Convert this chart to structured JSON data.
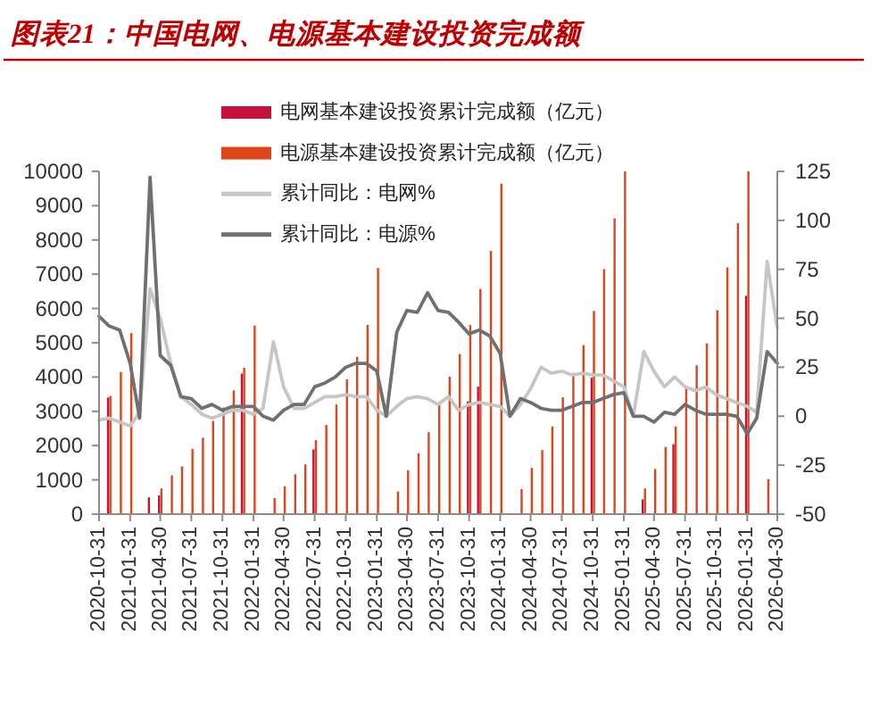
{
  "chart_data": {
    "type": "bar",
    "title": "图表21：中国电网、电源基本建设投资完成额",
    "x": [
      "2020-10-31",
      "2020-11-30",
      "2020-12-31",
      "2021-01-31",
      "2021-02-28",
      "2021-03-31",
      "2021-04-30",
      "2021-05-31",
      "2021-06-30",
      "2021-07-31",
      "2021-08-31",
      "2021-09-30",
      "2021-10-31",
      "2021-11-30",
      "2021-12-31",
      "2022-01-31",
      "2022-02-28",
      "2022-03-31",
      "2022-04-30",
      "2022-05-31",
      "2022-06-30",
      "2022-07-31",
      "2022-08-31",
      "2022-09-30",
      "2022-10-31",
      "2022-11-30",
      "2022-12-31",
      "2023-01-31",
      "2023-02-28",
      "2023-03-31",
      "2023-04-30",
      "2023-05-31",
      "2023-06-30",
      "2023-07-31",
      "2023-08-31",
      "2023-09-30",
      "2023-10-31",
      "2023-11-30",
      "2023-12-31",
      "2024-01-31",
      "2024-02-29",
      "2024-03-31",
      "2024-04-30",
      "2024-05-31",
      "2024-06-30",
      "2024-07-31",
      "2024-08-31",
      "2024-09-30",
      "2024-10-31",
      "2024-11-30",
      "2024-12-31",
      "2025-01-31",
      "2025-02-28",
      "2025-03-31",
      "2025-04-30",
      "2025-05-31",
      "2025-06-30",
      "2025-07-31",
      "2025-08-31",
      "2025-09-30",
      "2025-10-31",
      "2025-11-30",
      "2025-12-31",
      "2026-01-31",
      "2026-02-28",
      "2026-03-31",
      "2026-04-30"
    ],
    "series": [
      {
        "name": "电网基本建设投资累计完成额（亿元）",
        "color": "#c8103c",
        "values": [
          null,
          3400,
          null,
          null,
          null,
          490,
          550,
          null,
          null,
          null,
          null,
          null,
          null,
          null,
          4100,
          null,
          null,
          null,
          null,
          null,
          null,
          1890,
          null,
          null,
          null,
          null,
          null,
          null,
          null,
          null,
          null,
          null,
          null,
          null,
          null,
          null,
          3290,
          3720,
          null,
          null,
          null,
          null,
          null,
          null,
          null,
          null,
          null,
          null,
          3980,
          null,
          null,
          null,
          null,
          430,
          null,
          null,
          2040,
          null,
          null,
          null,
          null,
          null,
          null,
          6370,
          null,
          null,
          null
        ]
      },
      {
        "name": "电源基本建设投资累计完成额（亿元）",
        "color": "#e2441a",
        "values": [
          null,
          3450,
          4150,
          5280,
          null,
          null,
          750,
          1130,
          1390,
          1900,
          2230,
          2720,
          3110,
          3610,
          4270,
          5500,
          null,
          470,
          810,
          1160,
          1450,
          2160,
          2600,
          3200,
          3930,
          4590,
          5520,
          7180,
          null,
          660,
          1280,
          1780,
          2390,
          3250,
          4010,
          4670,
          5520,
          6570,
          7680,
          9640,
          null,
          730,
          1350,
          1870,
          2560,
          3410,
          4120,
          4930,
          5930,
          7150,
          8630,
          10000,
          null,
          750,
          1320,
          1960,
          2560,
          3690,
          4340,
          4980,
          5950,
          7200,
          8490,
          10000,
          null,
          1020,
          null
        ]
      },
      {
        "name": "累计同比：电网%",
        "type": "line",
        "axis": "y2",
        "color": "#c6c6c6",
        "values": [
          -2,
          -1,
          -3,
          -5,
          2,
          65,
          50,
          27,
          10,
          6,
          1,
          -1,
          1,
          3,
          3,
          1,
          4,
          38,
          15,
          4,
          4,
          7,
          10,
          10,
          11,
          10,
          10,
          3,
          0,
          5,
          9,
          10,
          9,
          6,
          10,
          3,
          6,
          7,
          6,
          5,
          0,
          6,
          14,
          25,
          22,
          23,
          21,
          22,
          21,
          21,
          18,
          15,
          0,
          33,
          23,
          15,
          20,
          15,
          13,
          15,
          11,
          9,
          7,
          5,
          2,
          79,
          45
        ]
      },
      {
        "name": "累计同比：电源%",
        "type": "line",
        "axis": "y2",
        "color": "#707070",
        "values": [
          51,
          46,
          44,
          27,
          -1,
          122,
          31,
          26,
          10,
          9,
          4,
          6,
          3,
          5,
          5,
          5,
          0,
          -2,
          3,
          6,
          6,
          15,
          17,
          20,
          25,
          27,
          27,
          23,
          0,
          43,
          54,
          53,
          63,
          54,
          53,
          48,
          42,
          44,
          41,
          32,
          0,
          9,
          7,
          4,
          3,
          3,
          5,
          7,
          7,
          9,
          11,
          12,
          0,
          0,
          -3,
          2,
          1,
          6,
          3,
          1,
          1,
          1,
          0,
          -9,
          -1,
          33,
          27
        ]
      }
    ],
    "xlim": [
      "2020-10-31",
      "2026-04-30"
    ],
    "xticks": [
      "2020-10-31",
      "2021-01-31",
      "2021-04-30",
      "2021-07-31",
      "2021-10-31",
      "2022-01-31",
      "2022-04-30",
      "2022-07-31",
      "2022-10-31",
      "2023-01-31",
      "2023-04-30",
      "2023-07-31",
      "2023-10-31",
      "2024-01-31",
      "2024-04-30",
      "2024-07-31",
      "2024-10-31",
      "2025-01-31",
      "2025-04-30",
      "2025-07-31",
      "2025-10-31",
      "2026-01-31",
      "2026-04-30"
    ],
    "ylim": [
      0,
      10000
    ],
    "yticks": [
      0,
      1000,
      2000,
      3000,
      4000,
      5000,
      6000,
      7000,
      8000,
      9000,
      10000
    ],
    "y2lim": [
      -50,
      125
    ],
    "y2ticks": [
      -50,
      -25,
      0,
      25,
      50,
      75,
      100,
      125
    ],
    "legend": "top"
  }
}
